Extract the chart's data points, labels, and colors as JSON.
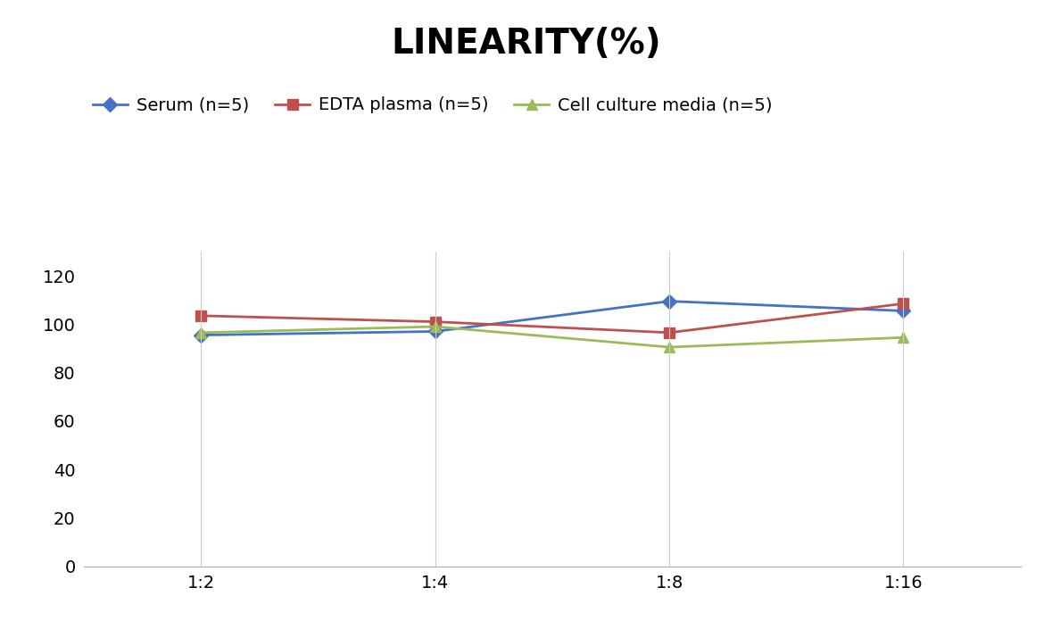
{
  "title": "LINEARITY(%)",
  "x_labels": [
    "1:2",
    "1:4",
    "1:8",
    "1:16"
  ],
  "x_positions": [
    0,
    1,
    2,
    3
  ],
  "series": [
    {
      "label": "Serum (n=5)",
      "values": [
        95.5,
        97.0,
        109.5,
        105.5
      ],
      "color": "#4472C4",
      "marker": "D",
      "markersize": 8,
      "linewidth": 2
    },
    {
      "label": "EDTA plasma (n=5)",
      "values": [
        103.5,
        101.0,
        96.5,
        108.5
      ],
      "color": "#C0504D",
      "marker": "s",
      "markersize": 8,
      "linewidth": 2
    },
    {
      "label": "Cell culture media (n=5)",
      "values": [
        96.5,
        99.0,
        90.5,
        94.5
      ],
      "color": "#9BBB59",
      "marker": "^",
      "markersize": 8,
      "linewidth": 2
    }
  ],
  "ylim": [
    0,
    130
  ],
  "yticks": [
    0,
    20,
    40,
    60,
    80,
    100,
    120
  ],
  "grid_color": "#CCCCCC",
  "background_color": "#FFFFFF",
  "title_fontsize": 28,
  "title_fontweight": "bold",
  "legend_fontsize": 14,
  "tick_fontsize": 14
}
